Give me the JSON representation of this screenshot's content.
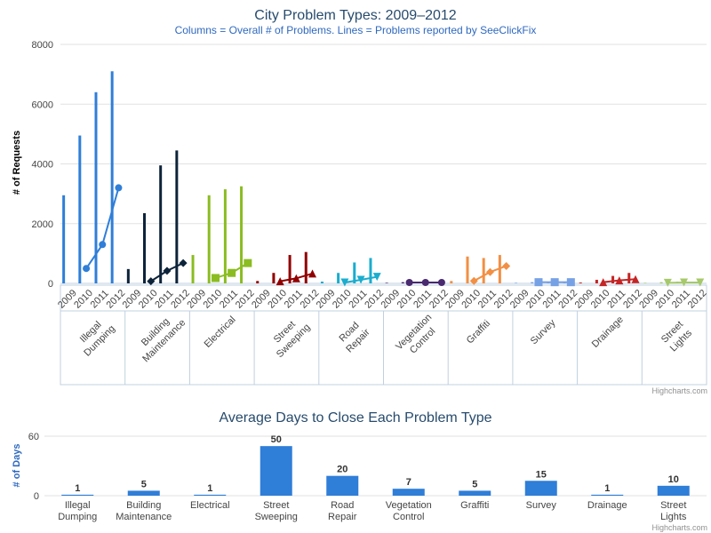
{
  "chart_data": [
    {
      "type": "bar",
      "title": "City Problem Types: 2009–2012",
      "subtitle": "Columns = Overall # of Problems. Lines = Problems reported by SeeClickFix",
      "ylabel": "# of Requests",
      "ylim": [
        0,
        8000
      ],
      "yticks": [
        "0",
        "2000",
        "4000",
        "6000",
        "8000"
      ],
      "years": [
        "2009",
        "2010",
        "2011",
        "2012"
      ],
      "grid": true,
      "credit": "Highcharts.com",
      "categories": [
        {
          "label": [
            "Illegal",
            "Dumping"
          ],
          "color": "#2f7ed8",
          "marker": "circle",
          "columns": [
            2950,
            4950,
            6400,
            7100
          ],
          "line": [
            null,
            500,
            1300,
            3200
          ]
        },
        {
          "label": [
            "Building",
            "Maintenance"
          ],
          "color": "#0d233a",
          "marker": "diamond",
          "columns": [
            480,
            2350,
            3950,
            4450
          ],
          "line": [
            null,
            70,
            420,
            680
          ]
        },
        {
          "label": [
            "Electrical"
          ],
          "color": "#8bbc21",
          "marker": "square",
          "columns": [
            950,
            2950,
            3150,
            3250
          ],
          "line": [
            null,
            180,
            350,
            680
          ]
        },
        {
          "label": [
            "Street",
            "Sweeping"
          ],
          "color": "#910000",
          "marker": "triangle",
          "columns": [
            80,
            350,
            950,
            1050
          ],
          "line": [
            null,
            70,
            170,
            330
          ]
        },
        {
          "label": [
            "Road",
            "Repair"
          ],
          "color": "#1aadce",
          "marker": "triangle-down",
          "columns": [
            60,
            350,
            700,
            850
          ],
          "line": [
            null,
            30,
            120,
            220
          ]
        },
        {
          "label": [
            "Vegetation",
            "Control"
          ],
          "color": "#492970",
          "marker": "circle",
          "columns": [
            20,
            40,
            40,
            40
          ],
          "line": [
            null,
            30,
            30,
            30
          ]
        },
        {
          "label": [
            "Graffiti"
          ],
          "color": "#f28f43",
          "marker": "diamond",
          "columns": [
            80,
            900,
            850,
            950
          ],
          "line": [
            null,
            80,
            380,
            580
          ]
        },
        {
          "label": [
            "Survey"
          ],
          "color": "#77a1e5",
          "marker": "square",
          "columns": [
            20,
            40,
            40,
            40
          ],
          "line": [
            null,
            40,
            40,
            40
          ]
        },
        {
          "label": [
            "Drainage"
          ],
          "color": "#c42525",
          "marker": "triangle",
          "columns": [
            30,
            120,
            250,
            350
          ],
          "line": [
            null,
            40,
            100,
            140
          ]
        },
        {
          "label": [
            "Street",
            "Lights"
          ],
          "color": "#a6c96a",
          "marker": "triangle-down",
          "columns": [
            20,
            40,
            60,
            40
          ],
          "line": [
            null,
            20,
            30,
            30
          ]
        }
      ]
    },
    {
      "type": "bar",
      "title": "Average Days to Close Each Problem Type",
      "ylabel": "# of Days",
      "ylim": [
        0,
        60
      ],
      "yticks": [
        "0",
        "60"
      ],
      "color": "#2f7ed8",
      "categories": [
        [
          "Illegal",
          "Dumping"
        ],
        [
          "Building",
          "Maintenance"
        ],
        [
          "Electrical"
        ],
        [
          "Street",
          "Sweeping"
        ],
        [
          "Road",
          "Repair"
        ],
        [
          "Vegetation",
          "Control"
        ],
        [
          "Graffiti"
        ],
        [
          "Survey"
        ],
        [
          "Drainage"
        ],
        [
          "Street",
          "Lights"
        ]
      ],
      "values": [
        1,
        5,
        1,
        50,
        20,
        7,
        5,
        15,
        1,
        10
      ],
      "data_labels": [
        "1",
        "5",
        "1",
        "50",
        "20",
        "7",
        "5",
        "15",
        "1",
        "10"
      ],
      "credit": "Highcharts.com"
    }
  ]
}
